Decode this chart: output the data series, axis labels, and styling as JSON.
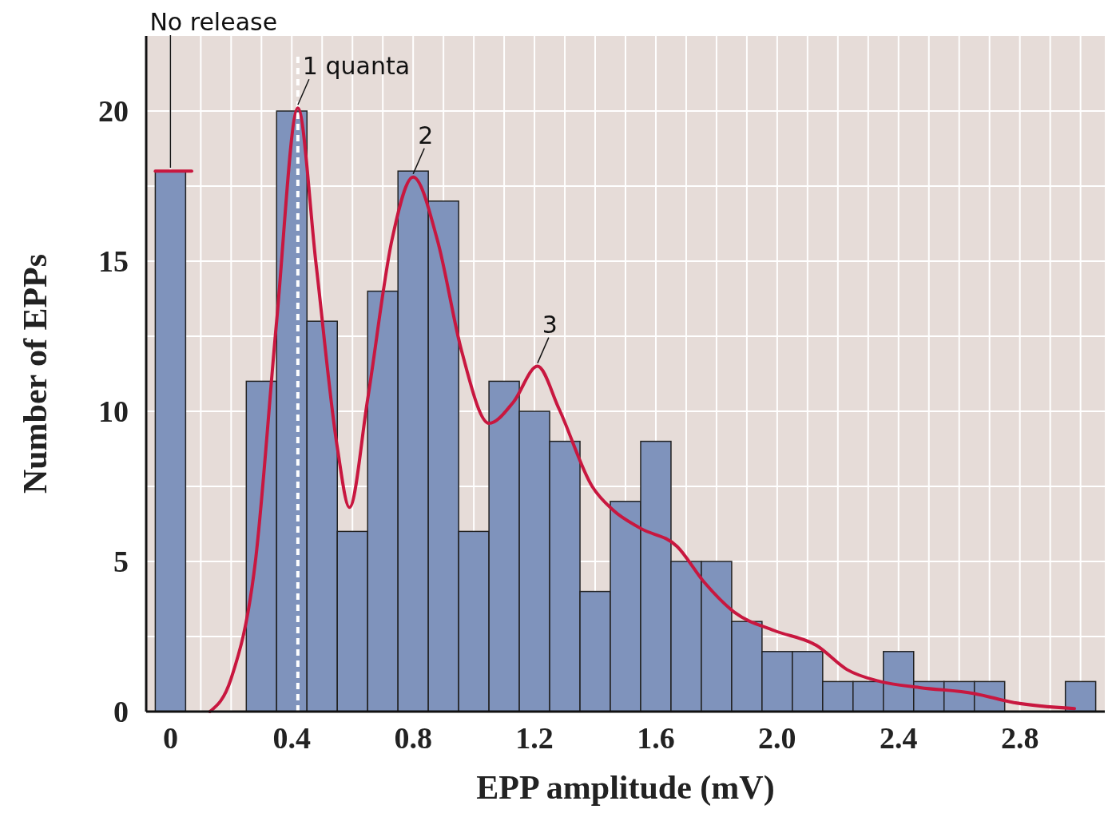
{
  "chart_data": {
    "type": "histogram",
    "xlabel": "EPP amplitude (mV)",
    "ylabel": "Number of  EPPs",
    "bins": [
      -0.05,
      0.05,
      0.15,
      0.25,
      0.35,
      0.45,
      0.55,
      0.65,
      0.75,
      0.85,
      0.95,
      1.05,
      1.15,
      1.25,
      1.35,
      1.45,
      1.55,
      1.65,
      1.75,
      1.85,
      1.95,
      2.05,
      2.15,
      2.25,
      2.35,
      2.45,
      2.55,
      2.65,
      2.75,
      2.85,
      2.95,
      3.05
    ],
    "values": [
      18,
      0,
      0,
      11,
      20,
      13,
      6,
      14,
      18,
      17,
      6,
      11,
      10,
      9,
      4,
      7,
      9,
      5,
      5,
      3,
      2,
      2,
      1,
      1,
      2,
      1,
      1,
      1,
      0,
      0,
      1
    ],
    "color": "#7f93bc",
    "series": [
      {
        "type": "line",
        "color": "#c8173f",
        "x": [
          0.13,
          0.2,
          0.28,
          0.35,
          0.42,
          0.48,
          0.55,
          0.59,
          0.65,
          0.73,
          0.8,
          0.88,
          0.96,
          1.05,
          1.13,
          1.21,
          1.28,
          1.39,
          1.46,
          1.55,
          1.67,
          1.76,
          1.86,
          1.99,
          2.13,
          2.23,
          2.34,
          2.47,
          2.65,
          2.78,
          2.98
        ],
        "values": [
          0,
          1.1,
          5,
          13,
          20.1,
          14.9,
          8.8,
          6.8,
          10.4,
          15.7,
          17.8,
          15.7,
          12,
          9.6,
          10.3,
          11.5,
          10.1,
          7.5,
          6.7,
          6.1,
          5.5,
          4.3,
          3.3,
          2.7,
          2.2,
          1.4,
          1,
          0.8,
          0.6,
          0.3,
          0.1
        ]
      },
      {
        "type": "line",
        "color": "#c8173f",
        "x": [
          -0.05,
          0.07
        ],
        "values": [
          18,
          18
        ]
      }
    ],
    "ref_lines": [
      {
        "axis": "x",
        "value": 0.42,
        "color": "#ffffff",
        "line_style": "dashed"
      }
    ],
    "annotations": [
      {
        "text": "No release",
        "x": 0,
        "y": 18
      },
      {
        "text": "1 quanta",
        "x": 0.42,
        "y": 20.1
      },
      {
        "text": "2",
        "x": 0.8,
        "y": 17.8
      },
      {
        "text": "3",
        "x": 1.21,
        "y": 11.5
      }
    ],
    "xlim": [
      -0.08,
      3.08
    ],
    "ylim": [
      0,
      22.5
    ],
    "xticks": [
      0,
      {
        "value": 0.1,
        "label": null
      },
      {
        "value": 0.2,
        "label": null
      },
      {
        "value": 0.3,
        "label": null
      },
      0.4,
      {
        "value": 0.5,
        "label": null
      },
      {
        "value": 0.6,
        "label": null
      },
      {
        "value": 0.7,
        "label": null
      },
      0.8,
      {
        "value": 0.9,
        "label": null
      },
      {
        "value": 1,
        "label": null
      },
      {
        "value": 1.1,
        "label": null
      },
      1.2,
      {
        "value": 1.3,
        "label": null
      },
      {
        "value": 1.4,
        "label": null
      },
      {
        "value": 1.5,
        "label": null
      },
      1.6,
      {
        "value": 1.7,
        "label": null
      },
      {
        "value": 1.8,
        "label": null
      },
      {
        "value": 1.9,
        "label": null
      },
      {
        "value": 2,
        "label": "2.0"
      },
      {
        "value": 2.1,
        "label": null
      },
      {
        "value": 2.2,
        "label": null
      },
      {
        "value": 2.3,
        "label": null
      },
      2.4,
      {
        "value": 2.5,
        "label": null
      },
      {
        "value": 2.6,
        "label": null
      },
      {
        "value": 2.7,
        "label": null
      },
      2.8,
      {
        "value": 2.9,
        "label": null
      },
      {
        "value": 3,
        "label": null
      }
    ],
    "yticks": [
      0,
      {
        "value": 2.5,
        "label": null
      },
      5,
      {
        "value": 7.5,
        "label": null
      },
      10,
      {
        "value": 12.5,
        "label": null
      },
      15,
      {
        "value": 17.5,
        "label": null
      },
      20
    ],
    "grid": true
  }
}
